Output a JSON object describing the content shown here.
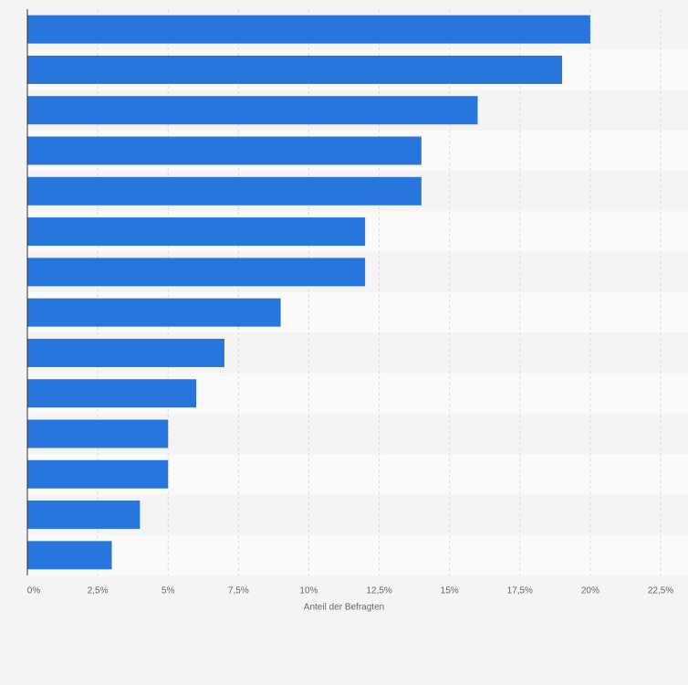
{
  "chart_data": {
    "type": "bar",
    "orientation": "horizontal",
    "xlabel": "Anteil der Befragten",
    "categories": [
      null,
      null,
      null,
      null,
      null,
      null,
      null,
      null,
      null,
      null,
      null,
      null,
      null,
      null
    ],
    "values": [
      20,
      19,
      16,
      14,
      14,
      12,
      12,
      9,
      7,
      6,
      5,
      5,
      4,
      3
    ],
    "color": "#2876dd",
    "xlim": [
      0,
      22.5
    ],
    "xticks": [
      {
        "value": 0,
        "label": "0%"
      },
      {
        "value": 2.5,
        "label": "2,5%"
      },
      {
        "value": 5,
        "label": "5%"
      },
      {
        "value": 7.5,
        "label": "7,5%"
      },
      {
        "value": 10,
        "label": "10%"
      },
      {
        "value": 12.5,
        "label": "12,5%"
      },
      {
        "value": 15,
        "label": "15%"
      },
      {
        "value": 17.5,
        "label": "17,5%"
      },
      {
        "value": 20,
        "label": "20%"
      },
      {
        "value": 22.5,
        "label": "22,5%"
      }
    ],
    "grid": true
  }
}
